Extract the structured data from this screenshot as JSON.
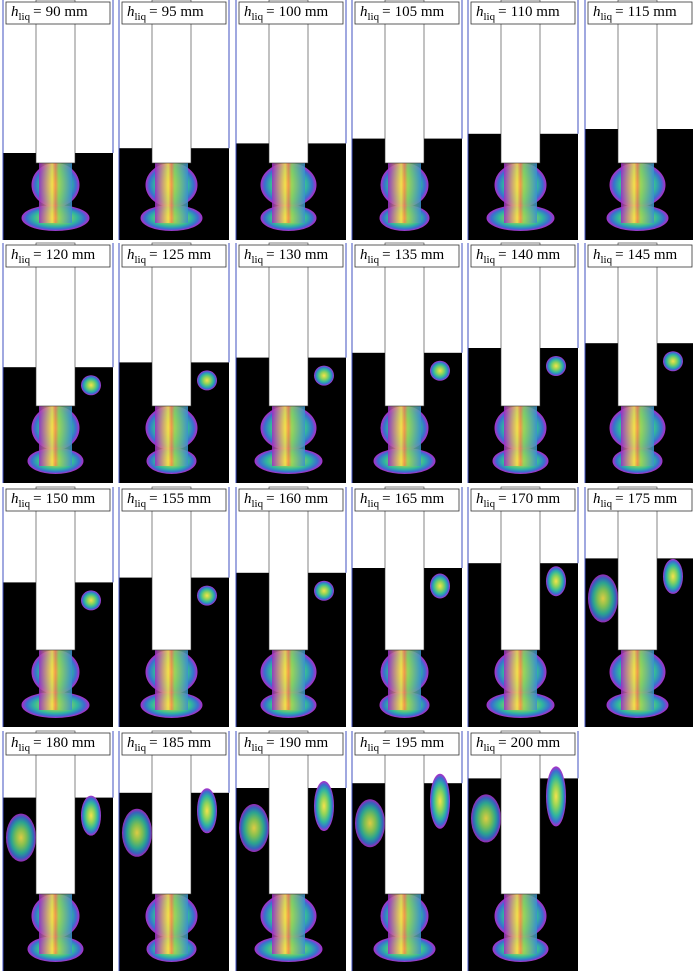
{
  "label": {
    "symbol": "h",
    "subscript": "liq",
    "relation": "="
  },
  "panels": [
    {
      "value": "90 mm"
    },
    {
      "value": "95 mm"
    },
    {
      "value": "100 mm"
    },
    {
      "value": "105 mm"
    },
    {
      "value": "110 mm"
    },
    {
      "value": "115 mm"
    },
    {
      "value": "120 mm"
    },
    {
      "value": "125 mm"
    },
    {
      "value": "130 mm"
    },
    {
      "value": "135 mm"
    },
    {
      "value": "140 mm"
    },
    {
      "value": "145 mm"
    },
    {
      "value": "150 mm"
    },
    {
      "value": "155 mm"
    },
    {
      "value": "160 mm"
    },
    {
      "value": "165 mm"
    },
    {
      "value": "170 mm"
    },
    {
      "value": "175 mm"
    },
    {
      "value": "180 mm"
    },
    {
      "value": "185 mm"
    },
    {
      "value": "190 mm"
    },
    {
      "value": "195 mm"
    },
    {
      "value": "200 mm"
    }
  ]
}
